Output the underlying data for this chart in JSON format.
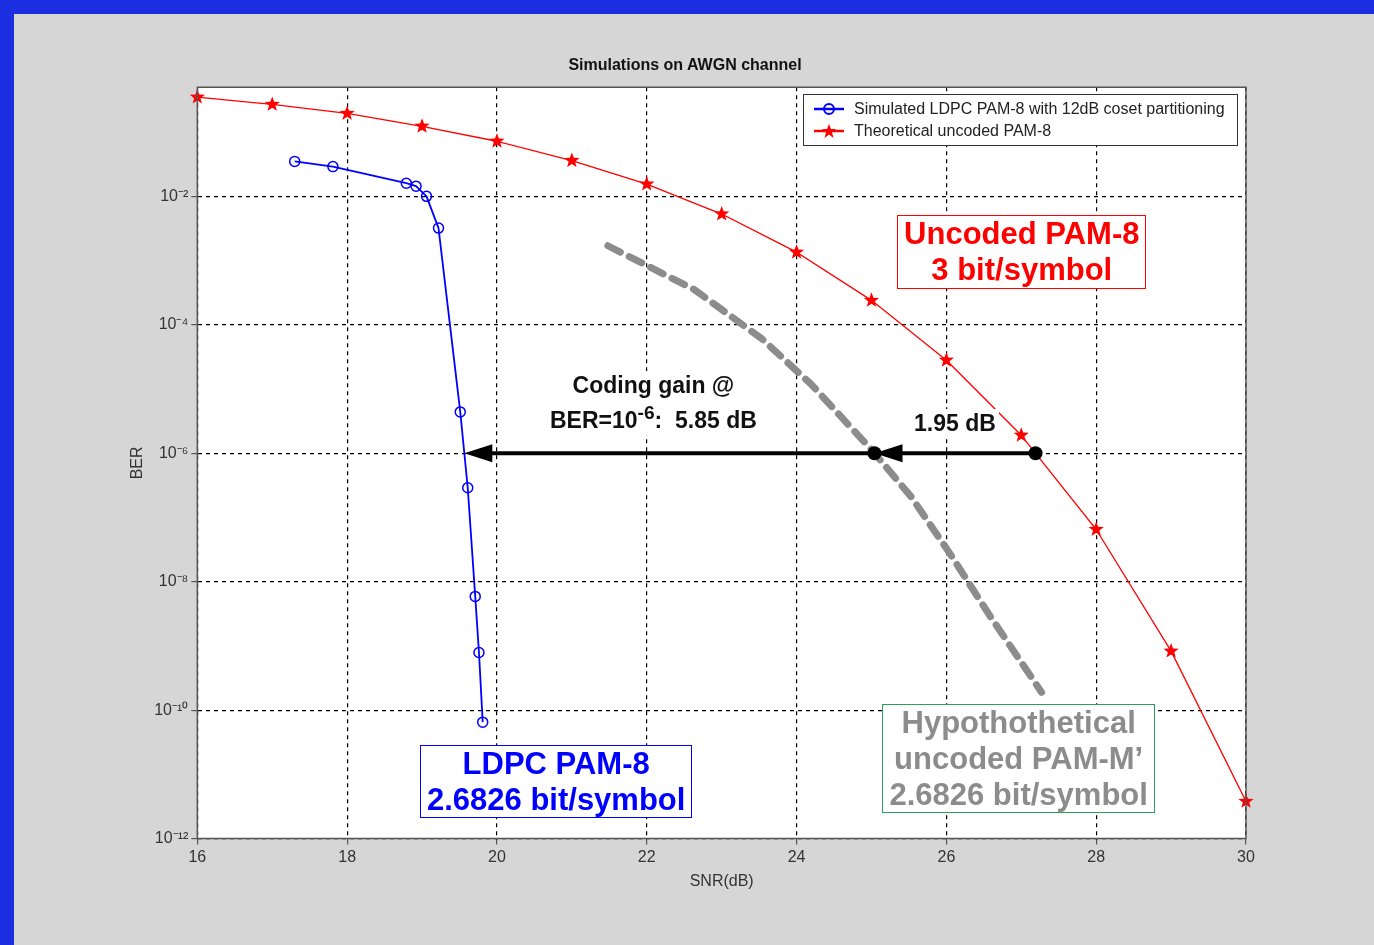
{
  "chart_data": {
    "type": "line",
    "title": "Simulations on AWGN channel",
    "xlabel": "SNR(dB)",
    "ylabel": "BER",
    "log": "y",
    "grid": true,
    "legend": "top right",
    "xlim": [
      16,
      30
    ],
    "xticks": [
      16,
      18,
      20,
      22,
      24,
      26,
      28,
      30
    ],
    "ylim": [
      1e-12,
      0.5
    ],
    "yticks": [
      {
        "value": 1e-12,
        "label": "10⁻¹²"
      },
      {
        "value": 1e-10,
        "label": "10⁻¹⁰"
      },
      {
        "value": 1e-08,
        "label": "10⁻⁸"
      },
      {
        "value": 1e-06,
        "label": "10⁻⁶"
      },
      {
        "value": 0.0001,
        "label": "10⁻⁴"
      },
      {
        "value": 0.01,
        "label": "10⁻²"
      }
    ],
    "series": [
      {
        "name": "Simulated LDPC PAM-8 with 12dB coset partitioning",
        "color": "#0000ff",
        "marker": "circle",
        "line_style": "solid",
        "x": [
          17.3,
          17.81,
          18.79,
          18.92,
          19.06,
          19.22,
          19.51,
          19.61,
          19.71,
          19.76,
          19.81
        ],
        "values": [
          0.035,
          0.029,
          0.016,
          0.0144,
          0.01,
          0.0032,
          4.4e-06,
          2.9e-07,
          5.9e-09,
          7.9e-10,
          6.5e-11
        ]
      },
      {
        "name": "Theoretical uncoded PAM-8",
        "color": "#ff0000",
        "marker": "star",
        "line_style": "solid",
        "x": [
          16,
          17,
          18,
          19,
          20,
          21,
          22,
          23,
          24,
          25,
          26,
          27,
          28,
          29,
          30
        ],
        "values": [
          0.35,
          0.27,
          0.195,
          0.123,
          0.072,
          0.036,
          0.0155,
          0.0053,
          0.00135,
          0.00024,
          2.8e-05,
          1.9e-06,
          6.5e-08,
          8.3e-10,
          3.8e-12
        ]
      },
      {
        "color": "#8c8c8c",
        "marker": "none",
        "line_style": "dashed",
        "x": [
          21.48,
          22.64,
          23.54,
          24.19,
          25.02,
          25.53,
          26.07,
          26.56,
          27.27
        ],
        "values": [
          0.0017,
          0.00035,
          6e-05,
          1.2e-05,
          1.07e-06,
          2.1e-07,
          2.5e-08,
          3.2e-09,
          1.9e-10
        ]
      }
    ],
    "annotations": [
      "LDPC PAM-8\n2.6826 bit/symbol",
      "Uncoded PAM-8\n3 bit/symbol",
      "Hypothothetical\nuncoded PAM-M’\n2.6826 bit/symbol",
      "Coding gain @\nBER=10$^{-6}$:  5.85 dB",
      {
        "text": "1.95 dB",
        "x": 25.04,
        "y": 1e-06
      }
    ]
  }
}
